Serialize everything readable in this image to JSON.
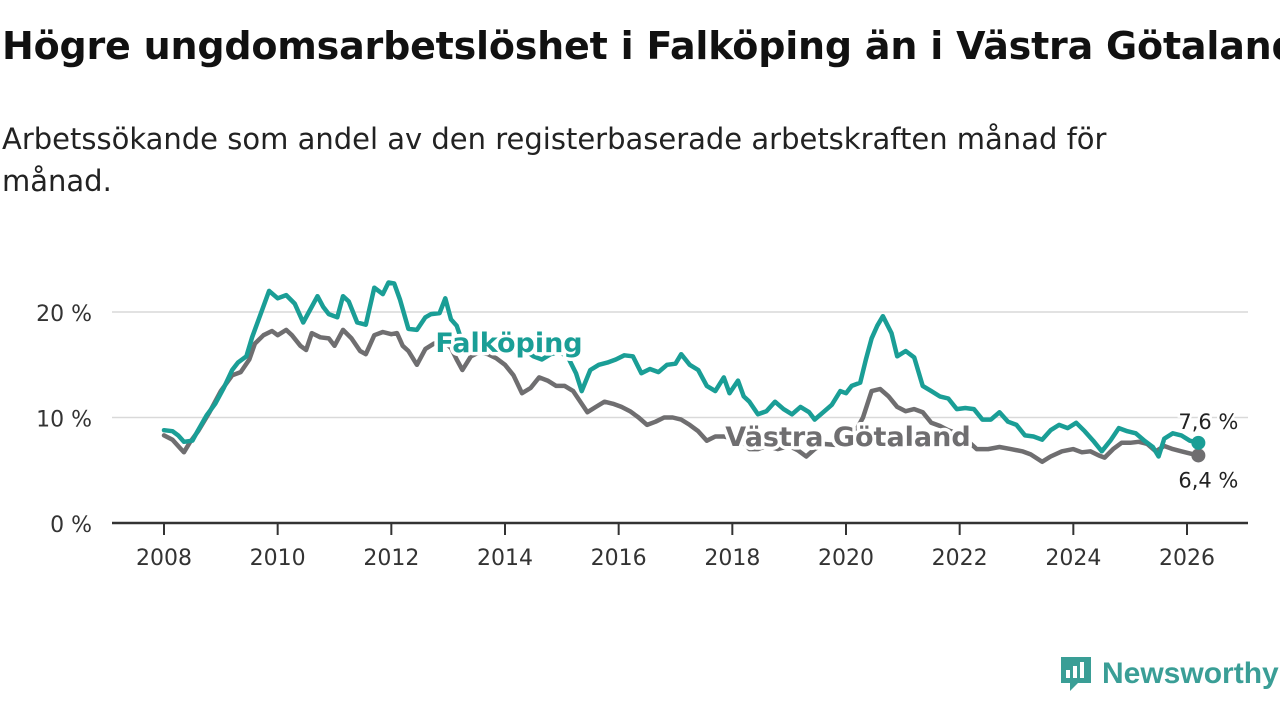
{
  "title": "Högre ungdomsarbetslöshet i Falköping än i Västra Götaland",
  "subtitle": "Arbetssökande som andel av den registerbaserade arbetskraften månad för månad.",
  "brand": {
    "name": "Newsworthy",
    "icon": "newsworthy-logo-icon",
    "color": "#3a9e96"
  },
  "chart_data": {
    "type": "line",
    "title": "Högre ungdomsarbetslöshet i Falköping än i Västra Götaland",
    "xlabel": "",
    "ylabel": "",
    "xlim": [
      2007.5,
      2026.8
    ],
    "ylim": [
      0,
      23
    ],
    "grid": true,
    "x_ticks": [
      2008,
      2010,
      2012,
      2014,
      2016,
      2018,
      2020,
      2022,
      2024,
      2026
    ],
    "x_tick_labels": [
      "2008",
      "2010",
      "2012",
      "2014",
      "2016",
      "2018",
      "2020",
      "2022",
      "2024",
      "2026"
    ],
    "y_ticks": [
      0,
      10,
      20
    ],
    "y_tick_labels": [
      "0 %",
      "10 %",
      "20 %"
    ],
    "series": [
      {
        "name": "Västra Götaland",
        "color": "#6f6e70",
        "label": "Västra Götaland",
        "end_label": "6,4 %",
        "points": [
          [
            2008.0,
            8.3
          ],
          [
            2008.15,
            7.9
          ],
          [
            2008.3,
            7.0
          ],
          [
            2008.35,
            6.7
          ],
          [
            2008.45,
            7.6
          ],
          [
            2008.6,
            8.7
          ],
          [
            2008.8,
            10.5
          ],
          [
            2009.0,
            12.5
          ],
          [
            2009.2,
            14.0
          ],
          [
            2009.35,
            14.3
          ],
          [
            2009.5,
            15.5
          ],
          [
            2009.6,
            17.0
          ],
          [
            2009.75,
            17.8
          ],
          [
            2009.9,
            18.2
          ],
          [
            2010.0,
            17.8
          ],
          [
            2010.15,
            18.3
          ],
          [
            2010.25,
            17.8
          ],
          [
            2010.4,
            16.8
          ],
          [
            2010.5,
            16.4
          ],
          [
            2010.6,
            18.0
          ],
          [
            2010.75,
            17.6
          ],
          [
            2010.9,
            17.5
          ],
          [
            2011.0,
            16.8
          ],
          [
            2011.15,
            18.3
          ],
          [
            2011.3,
            17.5
          ],
          [
            2011.45,
            16.3
          ],
          [
            2011.55,
            16.0
          ],
          [
            2011.7,
            17.8
          ],
          [
            2011.85,
            18.1
          ],
          [
            2012.0,
            17.9
          ],
          [
            2012.1,
            18.0
          ],
          [
            2012.2,
            16.8
          ],
          [
            2012.3,
            16.3
          ],
          [
            2012.45,
            15.0
          ],
          [
            2012.6,
            16.5
          ],
          [
            2012.75,
            17.0
          ],
          [
            2012.9,
            17.3
          ],
          [
            2013.05,
            16.6
          ],
          [
            2013.15,
            15.5
          ],
          [
            2013.25,
            14.5
          ],
          [
            2013.4,
            15.8
          ],
          [
            2013.55,
            16.2
          ],
          [
            2013.7,
            16.0
          ],
          [
            2013.85,
            15.6
          ],
          [
            2014.0,
            15.0
          ],
          [
            2014.15,
            14.0
          ],
          [
            2014.3,
            12.3
          ],
          [
            2014.45,
            12.8
          ],
          [
            2014.6,
            13.8
          ],
          [
            2014.75,
            13.5
          ],
          [
            2014.9,
            13.0
          ],
          [
            2015.05,
            13.0
          ],
          [
            2015.2,
            12.5
          ],
          [
            2015.3,
            11.7
          ],
          [
            2015.45,
            10.5
          ],
          [
            2015.6,
            11.0
          ],
          [
            2015.75,
            11.5
          ],
          [
            2015.9,
            11.3
          ],
          [
            2016.05,
            11.0
          ],
          [
            2016.2,
            10.6
          ],
          [
            2016.35,
            10.0
          ],
          [
            2016.5,
            9.3
          ],
          [
            2016.65,
            9.6
          ],
          [
            2016.8,
            10.0
          ],
          [
            2016.95,
            10.0
          ],
          [
            2017.1,
            9.8
          ],
          [
            2017.25,
            9.3
          ],
          [
            2017.4,
            8.7
          ],
          [
            2017.55,
            7.8
          ],
          [
            2017.7,
            8.2
          ],
          [
            2017.85,
            8.2
          ],
          [
            2018.0,
            8.0
          ],
          [
            2018.15,
            7.9
          ],
          [
            2018.3,
            7.0
          ],
          [
            2018.45,
            7.0
          ],
          [
            2018.6,
            7.3
          ],
          [
            2018.8,
            7.0
          ],
          [
            2019.0,
            7.3
          ],
          [
            2019.15,
            6.9
          ],
          [
            2019.3,
            6.3
          ],
          [
            2019.45,
            7.0
          ],
          [
            2019.6,
            7.5
          ],
          [
            2019.8,
            7.4
          ],
          [
            2020.0,
            8.0
          ],
          [
            2020.15,
            8.5
          ],
          [
            2020.3,
            10.0
          ],
          [
            2020.45,
            12.5
          ],
          [
            2020.6,
            12.7
          ],
          [
            2020.75,
            12.0
          ],
          [
            2020.9,
            11.0
          ],
          [
            2021.05,
            10.6
          ],
          [
            2021.2,
            10.8
          ],
          [
            2021.35,
            10.5
          ],
          [
            2021.5,
            9.5
          ],
          [
            2021.65,
            9.2
          ],
          [
            2021.8,
            8.8
          ],
          [
            2021.95,
            8.5
          ],
          [
            2022.1,
            8.0
          ],
          [
            2022.3,
            7.0
          ],
          [
            2022.5,
            7.0
          ],
          [
            2022.7,
            7.2
          ],
          [
            2022.9,
            7.0
          ],
          [
            2023.1,
            6.8
          ],
          [
            2023.25,
            6.5
          ],
          [
            2023.45,
            5.8
          ],
          [
            2023.6,
            6.3
          ],
          [
            2023.8,
            6.8
          ],
          [
            2024.0,
            7.0
          ],
          [
            2024.15,
            6.7
          ],
          [
            2024.3,
            6.8
          ],
          [
            2024.45,
            6.4
          ],
          [
            2024.55,
            6.2
          ],
          [
            2024.7,
            7.0
          ],
          [
            2024.85,
            7.6
          ],
          [
            2025.0,
            7.6
          ],
          [
            2025.15,
            7.7
          ],
          [
            2025.3,
            7.5
          ],
          [
            2025.45,
            6.8
          ],
          [
            2025.6,
            7.3
          ],
          [
            2025.75,
            7.0
          ],
          [
            2025.9,
            6.8
          ],
          [
            2026.05,
            6.6
          ],
          [
            2026.2,
            6.4
          ]
        ]
      },
      {
        "name": "Falköping",
        "color": "#1a9e96",
        "label": "Falköping",
        "end_label": "7,6 %",
        "points": [
          [
            2008.0,
            8.8
          ],
          [
            2008.15,
            8.7
          ],
          [
            2008.25,
            8.3
          ],
          [
            2008.35,
            7.7
          ],
          [
            2008.5,
            7.8
          ],
          [
            2008.6,
            8.8
          ],
          [
            2008.75,
            10.2
          ],
          [
            2008.9,
            11.3
          ],
          [
            2009.05,
            12.8
          ],
          [
            2009.2,
            14.5
          ],
          [
            2009.3,
            15.2
          ],
          [
            2009.45,
            15.8
          ],
          [
            2009.55,
            17.6
          ],
          [
            2009.7,
            19.8
          ],
          [
            2009.85,
            22.0
          ],
          [
            2010.0,
            21.3
          ],
          [
            2010.15,
            21.6
          ],
          [
            2010.3,
            20.8
          ],
          [
            2010.45,
            19.0
          ],
          [
            2010.55,
            20.0
          ],
          [
            2010.7,
            21.5
          ],
          [
            2010.8,
            20.5
          ],
          [
            2010.9,
            19.8
          ],
          [
            2011.05,
            19.5
          ],
          [
            2011.15,
            21.5
          ],
          [
            2011.25,
            21.0
          ],
          [
            2011.4,
            19.0
          ],
          [
            2011.55,
            18.8
          ],
          [
            2011.7,
            22.3
          ],
          [
            2011.85,
            21.7
          ],
          [
            2011.95,
            22.8
          ],
          [
            2012.05,
            22.7
          ],
          [
            2012.15,
            21.2
          ],
          [
            2012.3,
            18.4
          ],
          [
            2012.45,
            18.3
          ],
          [
            2012.6,
            19.5
          ],
          [
            2012.7,
            19.8
          ],
          [
            2012.85,
            19.9
          ],
          [
            2012.95,
            21.3
          ],
          [
            2013.05,
            19.3
          ],
          [
            2013.15,
            18.7
          ],
          [
            2013.3,
            16.3
          ],
          [
            2013.45,
            16.7
          ],
          [
            2013.6,
            17.5
          ],
          [
            2013.75,
            17.3
          ],
          [
            2013.9,
            17.0
          ],
          [
            2014.05,
            16.6
          ],
          [
            2014.2,
            16.2
          ],
          [
            2014.35,
            16.4
          ],
          [
            2014.5,
            15.8
          ],
          [
            2014.65,
            15.5
          ],
          [
            2014.8,
            16.0
          ],
          [
            2014.95,
            16.2
          ],
          [
            2015.1,
            15.8
          ],
          [
            2015.25,
            14.2
          ],
          [
            2015.35,
            12.5
          ],
          [
            2015.5,
            14.5
          ],
          [
            2015.65,
            15.0
          ],
          [
            2015.8,
            15.2
          ],
          [
            2015.95,
            15.5
          ],
          [
            2016.1,
            15.9
          ],
          [
            2016.25,
            15.8
          ],
          [
            2016.4,
            14.2
          ],
          [
            2016.55,
            14.6
          ],
          [
            2016.7,
            14.3
          ],
          [
            2016.85,
            15.0
          ],
          [
            2017.0,
            15.1
          ],
          [
            2017.1,
            16.0
          ],
          [
            2017.25,
            15.0
          ],
          [
            2017.4,
            14.5
          ],
          [
            2017.55,
            13.0
          ],
          [
            2017.7,
            12.5
          ],
          [
            2017.85,
            13.8
          ],
          [
            2017.95,
            12.3
          ],
          [
            2018.1,
            13.5
          ],
          [
            2018.2,
            12.0
          ],
          [
            2018.3,
            11.5
          ],
          [
            2018.45,
            10.3
          ],
          [
            2018.6,
            10.6
          ],
          [
            2018.75,
            11.5
          ],
          [
            2018.9,
            10.8
          ],
          [
            2019.05,
            10.3
          ],
          [
            2019.2,
            11.0
          ],
          [
            2019.35,
            10.5
          ],
          [
            2019.45,
            9.8
          ],
          [
            2019.6,
            10.5
          ],
          [
            2019.75,
            11.2
          ],
          [
            2019.9,
            12.5
          ],
          [
            2020.0,
            12.3
          ],
          [
            2020.1,
            13.0
          ],
          [
            2020.25,
            13.3
          ],
          [
            2020.35,
            15.5
          ],
          [
            2020.45,
            17.5
          ],
          [
            2020.55,
            18.7
          ],
          [
            2020.65,
            19.6
          ],
          [
            2020.8,
            18.0
          ],
          [
            2020.9,
            15.8
          ],
          [
            2021.05,
            16.3
          ],
          [
            2021.2,
            15.7
          ],
          [
            2021.35,
            13.0
          ],
          [
            2021.5,
            12.5
          ],
          [
            2021.65,
            12.0
          ],
          [
            2021.8,
            11.8
          ],
          [
            2021.95,
            10.8
          ],
          [
            2022.1,
            10.9
          ],
          [
            2022.25,
            10.8
          ],
          [
            2022.4,
            9.8
          ],
          [
            2022.55,
            9.8
          ],
          [
            2022.7,
            10.5
          ],
          [
            2022.85,
            9.6
          ],
          [
            2023.0,
            9.3
          ],
          [
            2023.15,
            8.3
          ],
          [
            2023.3,
            8.2
          ],
          [
            2023.45,
            7.9
          ],
          [
            2023.6,
            8.8
          ],
          [
            2023.75,
            9.3
          ],
          [
            2023.9,
            9.0
          ],
          [
            2024.05,
            9.5
          ],
          [
            2024.2,
            8.7
          ],
          [
            2024.35,
            7.8
          ],
          [
            2024.5,
            6.8
          ],
          [
            2024.65,
            7.8
          ],
          [
            2024.8,
            9.0
          ],
          [
            2024.95,
            8.7
          ],
          [
            2025.1,
            8.5
          ],
          [
            2025.25,
            7.8
          ],
          [
            2025.4,
            7.2
          ],
          [
            2025.5,
            6.3
          ],
          [
            2025.6,
            8.0
          ],
          [
            2025.75,
            8.5
          ],
          [
            2025.9,
            8.3
          ],
          [
            2026.05,
            7.8
          ],
          [
            2026.2,
            7.6
          ]
        ]
      }
    ]
  }
}
